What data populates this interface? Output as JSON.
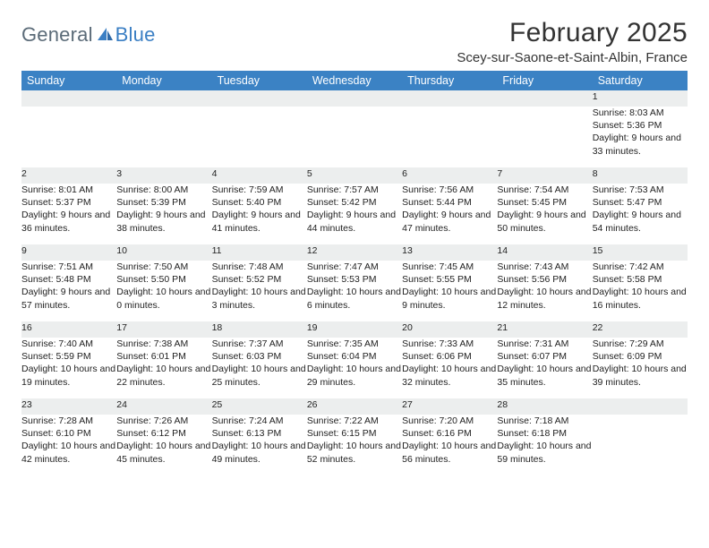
{
  "logo": {
    "text1": "General",
    "text2": "Blue"
  },
  "title": "February 2025",
  "location": "Scey-sur-Saone-et-Saint-Albin, France",
  "colors": {
    "header_bg": "#3b82c4",
    "header_text": "#ffffff",
    "daynum_bg": "#eceeee",
    "row_border": "#3b6f9e",
    "logo_gray": "#5b6b78",
    "logo_blue": "#3b7fc4",
    "page_bg": "#ffffff",
    "text": "#222222"
  },
  "dayHeaders": [
    "Sunday",
    "Monday",
    "Tuesday",
    "Wednesday",
    "Thursday",
    "Friday",
    "Saturday"
  ],
  "weeks": [
    [
      {},
      {},
      {},
      {},
      {},
      {},
      {
        "n": "1",
        "sr": "8:03 AM",
        "ss": "5:36 PM",
        "dl": "9 hours and 33 minutes."
      }
    ],
    [
      {
        "n": "2",
        "sr": "8:01 AM",
        "ss": "5:37 PM",
        "dl": "9 hours and 36 minutes."
      },
      {
        "n": "3",
        "sr": "8:00 AM",
        "ss": "5:39 PM",
        "dl": "9 hours and 38 minutes."
      },
      {
        "n": "4",
        "sr": "7:59 AM",
        "ss": "5:40 PM",
        "dl": "9 hours and 41 minutes."
      },
      {
        "n": "5",
        "sr": "7:57 AM",
        "ss": "5:42 PM",
        "dl": "9 hours and 44 minutes."
      },
      {
        "n": "6",
        "sr": "7:56 AM",
        "ss": "5:44 PM",
        "dl": "9 hours and 47 minutes."
      },
      {
        "n": "7",
        "sr": "7:54 AM",
        "ss": "5:45 PM",
        "dl": "9 hours and 50 minutes."
      },
      {
        "n": "8",
        "sr": "7:53 AM",
        "ss": "5:47 PM",
        "dl": "9 hours and 54 minutes."
      }
    ],
    [
      {
        "n": "9",
        "sr": "7:51 AM",
        "ss": "5:48 PM",
        "dl": "9 hours and 57 minutes."
      },
      {
        "n": "10",
        "sr": "7:50 AM",
        "ss": "5:50 PM",
        "dl": "10 hours and 0 minutes."
      },
      {
        "n": "11",
        "sr": "7:48 AM",
        "ss": "5:52 PM",
        "dl": "10 hours and 3 minutes."
      },
      {
        "n": "12",
        "sr": "7:47 AM",
        "ss": "5:53 PM",
        "dl": "10 hours and 6 minutes."
      },
      {
        "n": "13",
        "sr": "7:45 AM",
        "ss": "5:55 PM",
        "dl": "10 hours and 9 minutes."
      },
      {
        "n": "14",
        "sr": "7:43 AM",
        "ss": "5:56 PM",
        "dl": "10 hours and 12 minutes."
      },
      {
        "n": "15",
        "sr": "7:42 AM",
        "ss": "5:58 PM",
        "dl": "10 hours and 16 minutes."
      }
    ],
    [
      {
        "n": "16",
        "sr": "7:40 AM",
        "ss": "5:59 PM",
        "dl": "10 hours and 19 minutes."
      },
      {
        "n": "17",
        "sr": "7:38 AM",
        "ss": "6:01 PM",
        "dl": "10 hours and 22 minutes."
      },
      {
        "n": "18",
        "sr": "7:37 AM",
        "ss": "6:03 PM",
        "dl": "10 hours and 25 minutes."
      },
      {
        "n": "19",
        "sr": "7:35 AM",
        "ss": "6:04 PM",
        "dl": "10 hours and 29 minutes."
      },
      {
        "n": "20",
        "sr": "7:33 AM",
        "ss": "6:06 PM",
        "dl": "10 hours and 32 minutes."
      },
      {
        "n": "21",
        "sr": "7:31 AM",
        "ss": "6:07 PM",
        "dl": "10 hours and 35 minutes."
      },
      {
        "n": "22",
        "sr": "7:29 AM",
        "ss": "6:09 PM",
        "dl": "10 hours and 39 minutes."
      }
    ],
    [
      {
        "n": "23",
        "sr": "7:28 AM",
        "ss": "6:10 PM",
        "dl": "10 hours and 42 minutes."
      },
      {
        "n": "24",
        "sr": "7:26 AM",
        "ss": "6:12 PM",
        "dl": "10 hours and 45 minutes."
      },
      {
        "n": "25",
        "sr": "7:24 AM",
        "ss": "6:13 PM",
        "dl": "10 hours and 49 minutes."
      },
      {
        "n": "26",
        "sr": "7:22 AM",
        "ss": "6:15 PM",
        "dl": "10 hours and 52 minutes."
      },
      {
        "n": "27",
        "sr": "7:20 AM",
        "ss": "6:16 PM",
        "dl": "10 hours and 56 minutes."
      },
      {
        "n": "28",
        "sr": "7:18 AM",
        "ss": "6:18 PM",
        "dl": "10 hours and 59 minutes."
      },
      {}
    ]
  ],
  "labels": {
    "sunrise": "Sunrise:",
    "sunset": "Sunset:",
    "daylight": "Daylight:"
  }
}
